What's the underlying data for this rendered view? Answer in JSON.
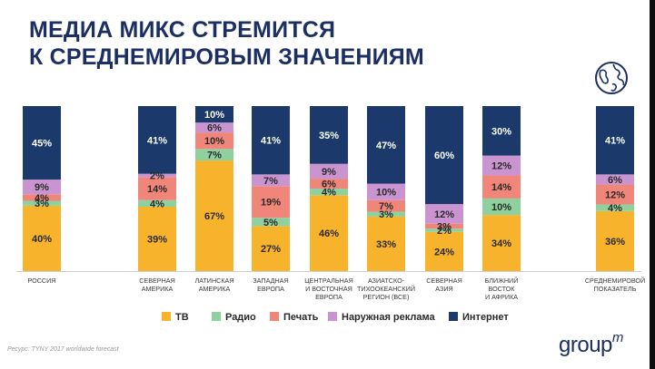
{
  "title": {
    "line1": "МЕДИА МИКС СТРЕМИТСЯ",
    "line2": "К СРЕДНЕМИРОВЫМ ЗНАЧЕНИЯМ"
  },
  "source": "Ресурс: TYNY 2017 worldwide forecast",
  "logo": {
    "main": "group",
    "sup": "m"
  },
  "icon": "globe-icon",
  "colors": {
    "tv": "#f7b32b",
    "radio": "#8fd19e",
    "print": "#f0857a",
    "outdoor": "#c994cf",
    "internet": "#1b3a6b",
    "title": "#1c2f63"
  },
  "chart_data": {
    "type": "bar",
    "stacked": true,
    "percent": true,
    "categories": [
      "РОССИЯ",
      "СЕВЕРНАЯ АМЕРИКА",
      "ЛАТИНСКАЯ АМЕРИКА",
      "ЗАПАДНАЯ ЕВРОПА",
      "ЦЕНТРАЛЬНАЯ И ВОСТОЧНАЯ ЕВРОПА",
      "АЗИАТСКО- ТИХООКЕАНСКИЙ РЕГИОН (ВСЕ)",
      "СЕВЕРНАЯ АЗИЯ",
      "БЛИЖНИЙ ВОСТОК И АФРИКА",
      "СРЕДНЕМИРОВОЙ ПОКАЗАТЕЛЬ"
    ],
    "category_lines": [
      [
        "РОССИЯ"
      ],
      [
        "СЕВЕРНАЯ",
        "АМЕРИКА"
      ],
      [
        "ЛАТИНСКАЯ",
        "АМЕРИКА"
      ],
      [
        "ЗАПАДНАЯ",
        "ЕВРОПА"
      ],
      [
        "ЦЕНТРАЛЬНАЯ",
        "И ВОСТОЧНАЯ",
        "ЕВРОПА"
      ],
      [
        "АЗИАТСКО-",
        "ТИХООКЕАНСКИЙ",
        "РЕГИОН (ВСЕ)"
      ],
      [
        "СЕВЕРНАЯ",
        "АЗИЯ"
      ],
      [
        "БЛИЖНИЙ",
        "ВОСТОК",
        "И АФРИКА"
      ],
      [
        "СРЕДНЕМИРОВОЙ",
        "ПОКАЗАТЕЛЬ"
      ]
    ],
    "series": [
      {
        "name": "ТВ",
        "key": "tv",
        "values": [
          40,
          39,
          67,
          27,
          46,
          33,
          24,
          34,
          36
        ]
      },
      {
        "name": "Радио",
        "key": "radio",
        "values": [
          3,
          4,
          7,
          5,
          4,
          3,
          2,
          10,
          4
        ]
      },
      {
        "name": "Печать",
        "key": "print",
        "values": [
          4,
          14,
          10,
          19,
          6,
          7,
          3,
          14,
          12
        ]
      },
      {
        "name": "Наружная реклама",
        "key": "outdoor",
        "values": [
          9,
          2,
          6,
          7,
          9,
          10,
          12,
          12,
          6
        ]
      },
      {
        "name": "Интернет",
        "key": "internet",
        "values": [
          45,
          41,
          10,
          41,
          35,
          47,
          60,
          30,
          41
        ]
      }
    ],
    "labels": [
      [
        "40%",
        "3%",
        "4%",
        "9%",
        "45%"
      ],
      [
        "39%",
        "4%",
        "14%",
        "2%",
        "41%"
      ],
      [
        "67%",
        "7%",
        "10%",
        "6%",
        "10%"
      ],
      [
        "27%",
        "5%",
        "19%",
        "7%",
        "41%"
      ],
      [
        "46%",
        "4%",
        "6%",
        "9%",
        "35%"
      ],
      [
        "33%",
        "3%",
        "7%",
        "10%",
        "47%"
      ],
      [
        "24%",
        "2%",
        "3%",
        "12%",
        "60%"
      ],
      [
        "34%",
        "10%",
        "14%",
        "12%",
        "30%"
      ],
      [
        "36%",
        "4%",
        "12%",
        "6%",
        "41%"
      ]
    ],
    "ylim": [
      0,
      100
    ],
    "grid": false,
    "legend_position": "bottom"
  }
}
